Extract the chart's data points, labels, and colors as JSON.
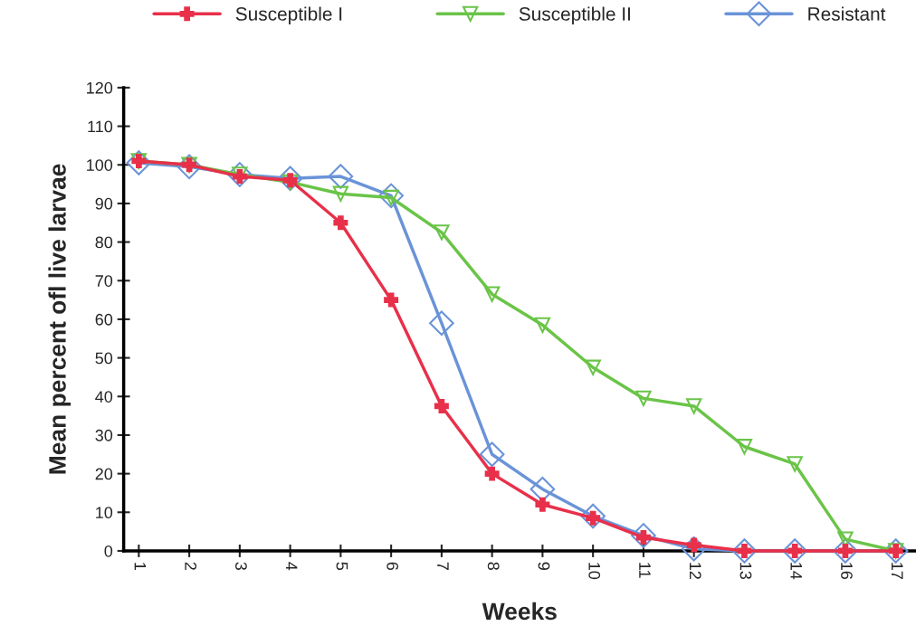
{
  "chart_data": {
    "type": "line",
    "xlabel": "Weeks",
    "ylabel": "Mean percent ofl live larvae",
    "categories": [
      "1",
      "2",
      "3",
      "4",
      "5",
      "6",
      "7",
      "8",
      "9",
      "10",
      "11",
      "12",
      "13",
      "14",
      "16",
      "17"
    ],
    "ylim": [
      0,
      120
    ],
    "yticks": [
      0,
      10,
      20,
      30,
      40,
      50,
      60,
      70,
      80,
      90,
      100,
      110,
      120
    ],
    "grid": false,
    "legend": "top",
    "series": [
      {
        "name": "Susceptible I",
        "color": "#e8304a",
        "marker": "cross",
        "values": [
          101,
          100,
          97,
          96,
          85,
          65,
          37.5,
          20,
          12,
          8.5,
          3.5,
          1.5,
          0,
          0,
          0,
          0
        ]
      },
      {
        "name": "Susceptible II",
        "color": "#6ac448",
        "marker": "triangle",
        "values": [
          101,
          100,
          97.5,
          95.5,
          92.5,
          91.5,
          82.5,
          66.5,
          58.5,
          47.5,
          39.5,
          37.5,
          27,
          22.5,
          3,
          0
        ]
      },
      {
        "name": "Resistant",
        "color": "#6a93d8",
        "marker": "diamond",
        "values": [
          100.5,
          99.5,
          97.5,
          96.5,
          97,
          92,
          59,
          25,
          16,
          9,
          4,
          0.5,
          0,
          0,
          0,
          0
        ]
      }
    ]
  }
}
